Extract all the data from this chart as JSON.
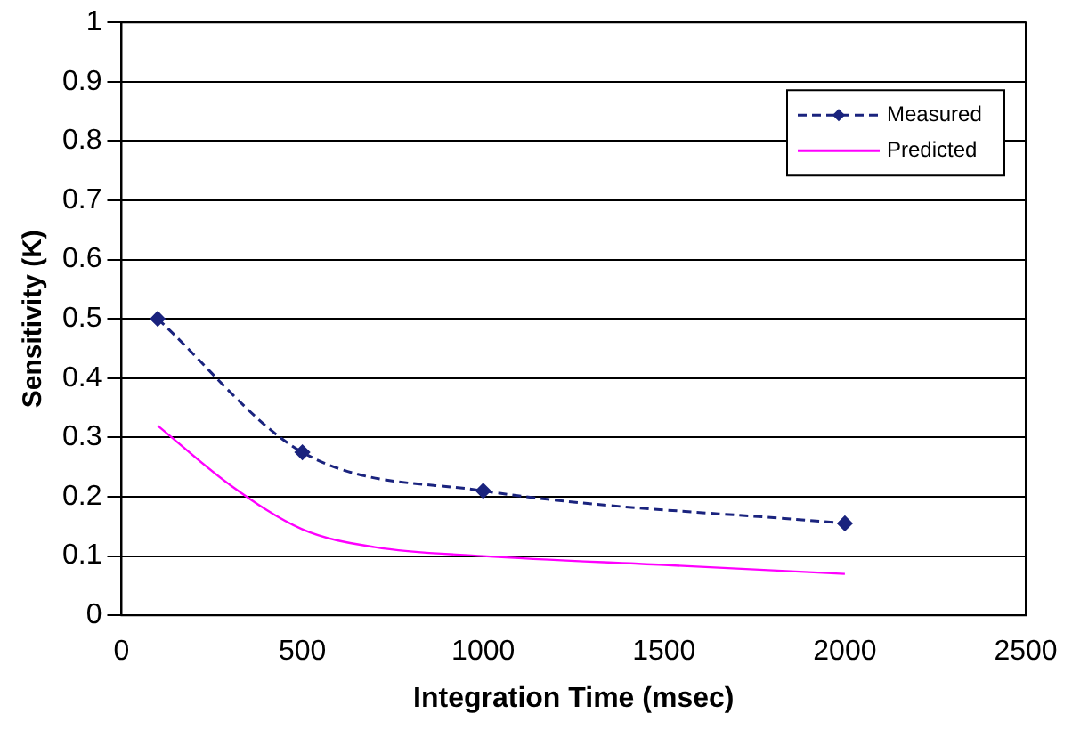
{
  "chart_data": {
    "type": "line",
    "xlabel": "Integration Time (msec)",
    "ylabel": "Sensitivity (K)",
    "xlim": [
      0,
      2500
    ],
    "xticks": [
      0,
      500,
      1000,
      1500,
      2000,
      2500
    ],
    "ylim": [
      0,
      1
    ],
    "yticks": [
      0,
      0.1,
      0.2,
      0.3,
      0.4,
      0.5,
      0.6,
      0.7,
      0.8,
      0.9,
      1
    ],
    "grid": "y",
    "legend": "top right",
    "series": [
      {
        "name": "Measured",
        "color": "#1a237e",
        "x": [
          100,
          500,
          1000,
          2000
        ],
        "values": [
          0.5,
          0.275,
          0.21,
          0.155
        ],
        "marker": "diamond",
        "line_style": "dashed"
      },
      {
        "name": "Predicted",
        "color": "#ff00ff",
        "x": [
          100,
          300,
          500,
          700,
          1000,
          1500,
          2000
        ],
        "values": [
          0.32,
          0.22,
          0.145,
          0.115,
          0.1,
          0.085,
          0.07
        ],
        "marker": "none",
        "line_style": "solid"
      }
    ]
  }
}
